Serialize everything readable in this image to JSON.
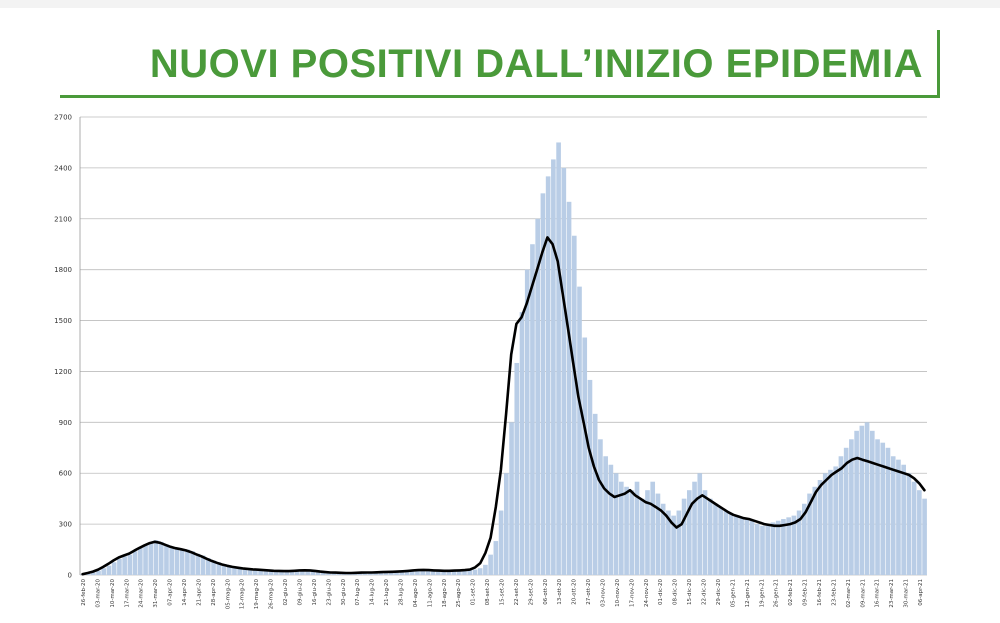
{
  "header": {
    "title": "NUOVI POSITIVI DALL’INIZIO EPIDEMIA"
  },
  "colors": {
    "title": "#4a9a3a",
    "bars": "#b9cde6",
    "line": "#000000",
    "grid": "#bdbdbd"
  },
  "chart_data": {
    "type": "bar",
    "title": "NUOVI POSITIVI DALL’INIZIO EPIDEMIA",
    "xlabel": "",
    "ylabel": "",
    "ylim": [
      0,
      2700
    ],
    "yticks": [
      0,
      300,
      600,
      900,
      1200,
      1500,
      1800,
      2100,
      2400,
      2700
    ],
    "xtick_labels": [
      "26-feb-20",
      "03-mar-20",
      "10-mar-20",
      "17-mar-20",
      "24-mar-20",
      "31-mar-20",
      "07-apr-20",
      "14-apr-20",
      "21-apr-20",
      "28-apr-20",
      "05-mag-20",
      "12-mag-20",
      "19-mag-20",
      "26-mag-20",
      "02-giu-20",
      "09-giu-20",
      "16-giu-20",
      "23-giu-20",
      "30-giu-20",
      "07-lug-20",
      "14-lug-20",
      "21-lug-20",
      "28-lug-20",
      "04-ago-20",
      "11-ago-20",
      "18-ago-20",
      "25-ago-20",
      "01-set-20",
      "08-set-20",
      "15-set-20",
      "22-set-20",
      "29-set-20",
      "06-ott-20",
      "13-ott-20",
      "20-ott-20",
      "27-ott-20",
      "03-nov-20",
      "10-nov-20",
      "17-nov-20",
      "24-nov-20",
      "01-dic-20",
      "08-dic-20",
      "15-dic-20",
      "22-dic-20",
      "29-dic-20",
      "05-gen-21",
      "12-gen-21",
      "19-gen-21",
      "26-gen-21",
      "02-feb-21",
      "09-feb-21",
      "16-feb-21",
      "23-feb-21",
      "02-mar-21",
      "09-mar-21",
      "16-mar-21",
      "23-mar-21",
      "30-mar-21",
      "06-apr-21"
    ],
    "grid": true,
    "legend": "none",
    "series": [
      {
        "type": "bar",
        "values": [
          5,
          10,
          15,
          25,
          40,
          55,
          75,
          95,
          110,
          120,
          140,
          160,
          175,
          190,
          205,
          195,
          180,
          165,
          160,
          155,
          150,
          140,
          125,
          115,
          100,
          85,
          75,
          65,
          55,
          50,
          45,
          40,
          38,
          35,
          32,
          30,
          28,
          25,
          24,
          22,
          22,
          25,
          28,
          30,
          28,
          25,
          20,
          18,
          15,
          14,
          13,
          12,
          12,
          13,
          14,
          15,
          15,
          16,
          18,
          18,
          20,
          20,
          22,
          25,
          28,
          30,
          32,
          30,
          28,
          26,
          25,
          25,
          26,
          28,
          30,
          32,
          40,
          60,
          120,
          200,
          380,
          600,
          900,
          1250,
          1550,
          1800,
          1950,
          2100,
          2250,
          2350,
          2450,
          2550,
          2400,
          2200,
          2000,
          1700,
          1400,
          1150,
          950,
          800,
          700,
          650,
          600,
          550,
          520,
          500,
          550,
          450,
          500,
          550,
          480,
          420,
          380,
          350,
          380,
          450,
          500,
          550,
          600,
          500,
          450,
          420,
          400,
          380,
          360,
          350,
          340,
          330,
          320,
          300,
          290,
          300,
          310,
          320,
          330,
          340,
          350,
          380,
          420,
          480,
          520,
          560,
          600,
          620,
          640,
          700,
          750,
          800,
          850,
          880,
          900,
          850,
          800,
          780,
          750,
          700,
          680,
          650,
          600,
          550,
          500,
          450
        ]
      },
      {
        "type": "line",
        "values": [
          5,
          12,
          20,
          32,
          48,
          66,
          86,
          103,
          115,
          126,
          143,
          160,
          175,
          188,
          196,
          190,
          178,
          166,
          158,
          152,
          145,
          135,
          122,
          110,
          96,
          83,
          72,
          62,
          54,
          48,
          43,
          39,
          36,
          33,
          31,
          29,
          27,
          25,
          24,
          23,
          23,
          25,
          27,
          28,
          27,
          24,
          20,
          17,
          15,
          14,
          13,
          12,
          12,
          13,
          14,
          15,
          15,
          16,
          17,
          18,
          19,
          20,
          22,
          24,
          27,
          29,
          30,
          29,
          27,
          26,
          25,
          25,
          26,
          27,
          29,
          32,
          45,
          70,
          130,
          220,
          400,
          620,
          950,
          1300,
          1480,
          1520,
          1600,
          1700,
          1800,
          1900,
          1990,
          1950,
          1850,
          1650,
          1450,
          1250,
          1050,
          900,
          750,
          640,
          560,
          510,
          480,
          460,
          470,
          480,
          500,
          470,
          450,
          430,
          420,
          400,
          380,
          350,
          310,
          280,
          300,
          360,
          420,
          450,
          470,
          450,
          430,
          410,
          390,
          370,
          355,
          345,
          335,
          330,
          320,
          310,
          300,
          295,
          290,
          290,
          295,
          300,
          310,
          330,
          370,
          430,
          490,
          530,
          560,
          590,
          610,
          630,
          660,
          680,
          690,
          680,
          670,
          660,
          650,
          640,
          630,
          620,
          610,
          600,
          590,
          570,
          540,
          500
        ]
      }
    ]
  }
}
